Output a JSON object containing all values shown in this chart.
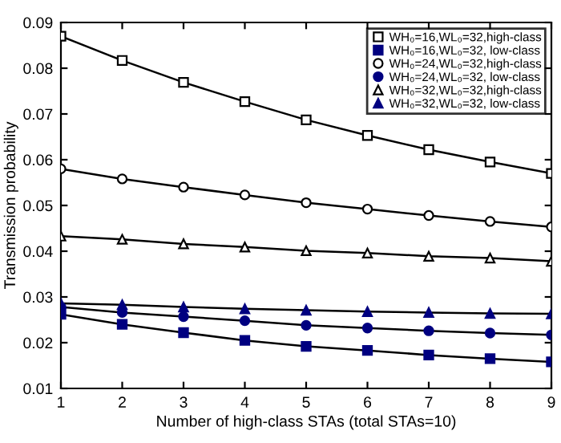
{
  "chart_data": {
    "type": "line",
    "xlabel": "Number of high-class STAs (total STAs=10)",
    "ylabel": "Transmission probability",
    "x": [
      1,
      2,
      3,
      4,
      5,
      6,
      7,
      8,
      9
    ],
    "xlim": [
      1,
      9
    ],
    "xticks": [
      1,
      2,
      3,
      4,
      5,
      6,
      7,
      8,
      9
    ],
    "ylim": [
      0.01,
      0.09
    ],
    "yticks": [
      0.01,
      0.02,
      0.03,
      0.04,
      0.05,
      0.06,
      0.07,
      0.08,
      0.09
    ],
    "legend": "top right",
    "line_style": "solid",
    "series": [
      {
        "name": "WH₀=16,WL₀=32,high-class",
        "color": "#000000",
        "marker": "square",
        "values": [
          0.087,
          0.0817,
          0.0769,
          0.0727,
          0.0687,
          0.0653,
          0.0622,
          0.0595,
          0.057
        ]
      },
      {
        "name": "WH₀=16,WL₀=32, low-class",
        "color": "#000080",
        "marker": "square",
        "values": [
          0.0262,
          0.024,
          0.0222,
          0.0205,
          0.0192,
          0.0183,
          0.0173,
          0.0165,
          0.0158
        ]
      },
      {
        "name": "WH₀=24,WL₀=32,high-class",
        "color": "#000000",
        "marker": "circle",
        "values": [
          0.058,
          0.0558,
          0.054,
          0.0523,
          0.0506,
          0.0492,
          0.0478,
          0.0465,
          0.0453
        ]
      },
      {
        "name": "WH₀=24,WL₀=32, low-class",
        "color": "#000080",
        "marker": "circle",
        "values": [
          0.0278,
          0.0266,
          0.0257,
          0.0248,
          0.0238,
          0.0232,
          0.0226,
          0.0221,
          0.0217
        ]
      },
      {
        "name": "WH₀=32,WL₀=32,high-class",
        "color": "#000000",
        "marker": "triangle",
        "values": [
          0.0433,
          0.0426,
          0.0416,
          0.0409,
          0.0401,
          0.0396,
          0.0389,
          0.0385,
          0.0378
        ]
      },
      {
        "name": "WH₀=32,WL₀=32, low-class",
        "color": "#000080",
        "marker": "triangle",
        "values": [
          0.0286,
          0.0283,
          0.0278,
          0.0274,
          0.0271,
          0.0268,
          0.0266,
          0.0264,
          0.0263
        ]
      }
    ]
  }
}
